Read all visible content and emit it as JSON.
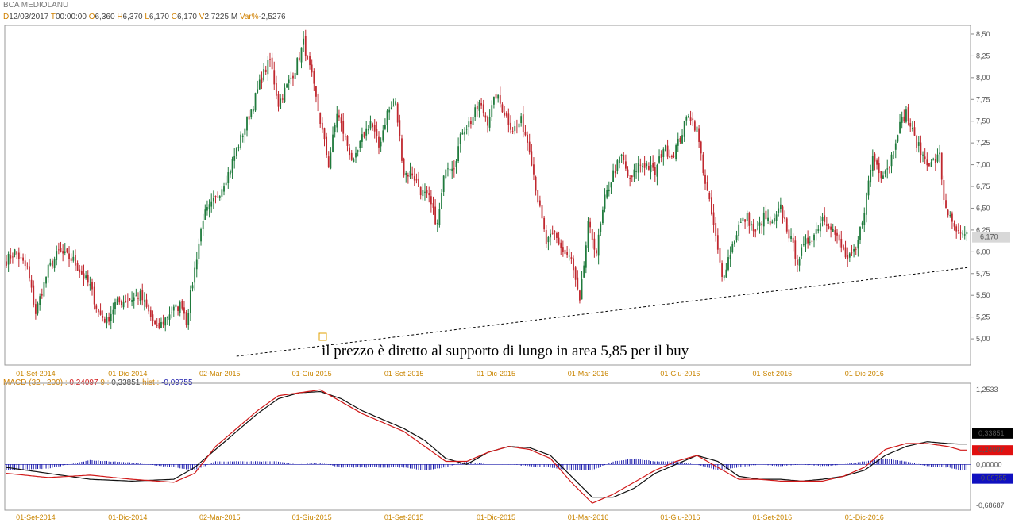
{
  "header": {
    "title": "BCA MEDIOLANU",
    "fields": [
      {
        "key": "D",
        "value": "12/03/2017"
      },
      {
        "key": "T",
        "value": "00:00:00"
      },
      {
        "key": "O",
        "value": "6,360"
      },
      {
        "key": "H",
        "value": "6,370"
      },
      {
        "key": "L",
        "value": "6,170"
      },
      {
        "key": "C",
        "value": "6,170"
      },
      {
        "key": "V",
        "value": "2,7225 M"
      },
      {
        "key": "Var%",
        "value": "-2,5276"
      }
    ]
  },
  "macd_header": {
    "name": "MACD",
    "params": "(32 , 200) :",
    "macd_value": "0,24097",
    "signal_label": "9 :",
    "signal_value": "0,33851",
    "hist_label": "hist :",
    "hist_value": "-0,09755"
  },
  "colors": {
    "up": "#1f7a3c",
    "down": "#c0282f",
    "macd_line": "#d01818",
    "signal_line": "#111111",
    "hist": "#1a1aaa",
    "date": "#c98500"
  },
  "annotation": "il prezzo è diretto al supporto di lungo in area 5,85 per il buy",
  "chart_data": [
    {
      "type": "candlestick",
      "title": "BCA MEDIOLANU",
      "ylim": [
        4.7,
        8.6
      ],
      "y_ticks": [
        "8,50",
        "8,25",
        "8,00",
        "7,75",
        "7,50",
        "7,25",
        "7,00",
        "6,75",
        "6,50",
        "6,25",
        "6,00",
        "5,75",
        "5,50",
        "5,25",
        "5,00"
      ],
      "y_tick_values": [
        8.5,
        8.25,
        8.0,
        7.75,
        7.5,
        7.25,
        7.0,
        6.75,
        6.5,
        6.25,
        6.0,
        5.75,
        5.5,
        5.25,
        5.0
      ],
      "last_price": "6,170",
      "x_labels": [
        "01-Set-2014",
        "01-Dic-2014",
        "02-Mar-2015",
        "01-Giu-2015",
        "01-Set-2015",
        "01-Dic-2015",
        "01-Mar-2016",
        "01-Giu-2016",
        "01-Set-2016",
        "01-Dic-2016"
      ],
      "x_label_index": [
        14,
        58,
        102,
        146,
        190,
        234,
        278,
        322,
        366,
        410
      ],
      "n_bars": 460,
      "close_anchors": [
        [
          0,
          5.9
        ],
        [
          4,
          6.0
        ],
        [
          10,
          5.8
        ],
        [
          14,
          5.3
        ],
        [
          20,
          5.8
        ],
        [
          25,
          6.0
        ],
        [
          32,
          5.9
        ],
        [
          40,
          5.6
        ],
        [
          44,
          5.3
        ],
        [
          48,
          5.2
        ],
        [
          52,
          5.4
        ],
        [
          58,
          5.45
        ],
        [
          64,
          5.5
        ],
        [
          68,
          5.3
        ],
        [
          72,
          5.1
        ],
        [
          78,
          5.3
        ],
        [
          84,
          5.4
        ],
        [
          86,
          5.2
        ],
        [
          90,
          5.8
        ],
        [
          94,
          6.4
        ],
        [
          100,
          6.6
        ],
        [
          106,
          6.9
        ],
        [
          112,
          7.3
        ],
        [
          118,
          7.7
        ],
        [
          122,
          8.0
        ],
        [
          126,
          8.2
        ],
        [
          130,
          7.7
        ],
        [
          134,
          7.9
        ],
        [
          138,
          8.1
        ],
        [
          142,
          8.4
        ],
        [
          146,
          8.0
        ],
        [
          150,
          7.5
        ],
        [
          154,
          7.0
        ],
        [
          158,
          7.6
        ],
        [
          162,
          7.3
        ],
        [
          166,
          7.0
        ],
        [
          170,
          7.3
        ],
        [
          174,
          7.5
        ],
        [
          178,
          7.2
        ],
        [
          182,
          7.6
        ],
        [
          186,
          7.7
        ],
        [
          190,
          6.9
        ],
        [
          194,
          6.9
        ],
        [
          198,
          6.7
        ],
        [
          202,
          6.6
        ],
        [
          206,
          6.3
        ],
        [
          210,
          7.0
        ],
        [
          214,
          7.0
        ],
        [
          218,
          7.4
        ],
        [
          222,
          7.5
        ],
        [
          226,
          7.7
        ],
        [
          230,
          7.5
        ],
        [
          234,
          7.8
        ],
        [
          238,
          7.6
        ],
        [
          242,
          7.4
        ],
        [
          246,
          7.5
        ],
        [
          250,
          7.2
        ],
        [
          254,
          6.6
        ],
        [
          258,
          6.1
        ],
        [
          262,
          6.2
        ],
        [
          266,
          6.0
        ],
        [
          270,
          5.9
        ],
        [
          274,
          5.4
        ],
        [
          278,
          6.3
        ],
        [
          282,
          6.0
        ],
        [
          286,
          6.6
        ],
        [
          290,
          6.9
        ],
        [
          294,
          7.1
        ],
        [
          298,
          6.8
        ],
        [
          302,
          7.0
        ],
        [
          306,
          7.0
        ],
        [
          310,
          6.9
        ],
        [
          314,
          7.2
        ],
        [
          318,
          7.1
        ],
        [
          322,
          7.3
        ],
        [
          326,
          7.6
        ],
        [
          330,
          7.4
        ],
        [
          334,
          6.8
        ],
        [
          338,
          6.3
        ],
        [
          342,
          5.7
        ],
        [
          346,
          6.0
        ],
        [
          350,
          6.3
        ],
        [
          354,
          6.4
        ],
        [
          358,
          6.2
        ],
        [
          362,
          6.4
        ],
        [
          366,
          6.3
        ],
        [
          370,
          6.5
        ],
        [
          374,
          6.2
        ],
        [
          378,
          5.9
        ],
        [
          382,
          6.1
        ],
        [
          386,
          6.2
        ],
        [
          390,
          6.4
        ],
        [
          394,
          6.3
        ],
        [
          398,
          6.1
        ],
        [
          402,
          5.9
        ],
        [
          406,
          6.0
        ],
        [
          410,
          6.5
        ],
        [
          414,
          7.1
        ],
        [
          418,
          6.9
        ],
        [
          422,
          7.0
        ],
        [
          426,
          7.4
        ],
        [
          430,
          7.6
        ],
        [
          434,
          7.3
        ],
        [
          438,
          7.1
        ],
        [
          442,
          7.0
        ],
        [
          446,
          7.1
        ],
        [
          448,
          6.6
        ],
        [
          452,
          6.3
        ],
        [
          456,
          6.17
        ]
      ],
      "trendline": [
        [
          110,
          4.8
        ],
        [
          460,
          5.82
        ]
      ]
    },
    {
      "type": "line",
      "title": "MACD (32 , 200)",
      "ylim": [
        -0.68687,
        1.2533
      ],
      "y_ticks": [
        "1,2533",
        "-0,68687"
      ],
      "zero_label": "0,00000",
      "last_values": {
        "signal": "0,33851",
        "macd": "0,24097",
        "hist": "-0,09755"
      },
      "series": [
        {
          "name": "MACD",
          "anchors": [
            [
              0,
              -0.15
            ],
            [
              20,
              -0.22
            ],
            [
              40,
              -0.18
            ],
            [
              60,
              -0.25
            ],
            [
              80,
              -0.3
            ],
            [
              90,
              -0.15
            ],
            [
              100,
              0.3
            ],
            [
              110,
              0.6
            ],
            [
              120,
              0.9
            ],
            [
              130,
              1.15
            ],
            [
              140,
              1.2
            ],
            [
              150,
              1.25
            ],
            [
              160,
              1.05
            ],
            [
              170,
              0.85
            ],
            [
              180,
              0.7
            ],
            [
              190,
              0.55
            ],
            [
              200,
              0.3
            ],
            [
              210,
              0.05
            ],
            [
              220,
              0.05
            ],
            [
              230,
              0.2
            ],
            [
              240,
              0.3
            ],
            [
              250,
              0.25
            ],
            [
              260,
              0.1
            ],
            [
              270,
              -0.3
            ],
            [
              280,
              -0.65
            ],
            [
              290,
              -0.5
            ],
            [
              300,
              -0.3
            ],
            [
              310,
              -0.1
            ],
            [
              320,
              0.05
            ],
            [
              330,
              0.15
            ],
            [
              340,
              -0.05
            ],
            [
              350,
              -0.25
            ],
            [
              360,
              -0.25
            ],
            [
              370,
              -0.28
            ],
            [
              380,
              -0.28
            ],
            [
              390,
              -0.28
            ],
            [
              400,
              -0.2
            ],
            [
              410,
              -0.05
            ],
            [
              420,
              0.25
            ],
            [
              430,
              0.35
            ],
            [
              440,
              0.35
            ],
            [
              450,
              0.3
            ],
            [
              456,
              0.24
            ]
          ]
        },
        {
          "name": "Signal",
          "anchors": [
            [
              0,
              -0.05
            ],
            [
              20,
              -0.15
            ],
            [
              40,
              -0.25
            ],
            [
              60,
              -0.28
            ],
            [
              80,
              -0.25
            ],
            [
              90,
              -0.05
            ],
            [
              100,
              0.25
            ],
            [
              110,
              0.55
            ],
            [
              120,
              0.85
            ],
            [
              130,
              1.1
            ],
            [
              140,
              1.2
            ],
            [
              150,
              1.22
            ],
            [
              160,
              1.1
            ],
            [
              170,
              0.9
            ],
            [
              180,
              0.75
            ],
            [
              190,
              0.6
            ],
            [
              200,
              0.4
            ],
            [
              210,
              0.1
            ],
            [
              220,
              0.0
            ],
            [
              230,
              0.2
            ],
            [
              240,
              0.3
            ],
            [
              250,
              0.28
            ],
            [
              260,
              0.15
            ],
            [
              270,
              -0.2
            ],
            [
              280,
              -0.55
            ],
            [
              290,
              -0.55
            ],
            [
              300,
              -0.4
            ],
            [
              310,
              -0.15
            ],
            [
              320,
              0.0
            ],
            [
              330,
              0.15
            ],
            [
              340,
              0.05
            ],
            [
              350,
              -0.2
            ],
            [
              360,
              -0.25
            ],
            [
              370,
              -0.25
            ],
            [
              380,
              -0.28
            ],
            [
              390,
              -0.25
            ],
            [
              400,
              -0.2
            ],
            [
              410,
              -0.1
            ],
            [
              420,
              0.15
            ],
            [
              430,
              0.3
            ],
            [
              440,
              0.38
            ],
            [
              450,
              0.35
            ],
            [
              456,
              0.34
            ]
          ]
        }
      ],
      "histogram_name": "hist"
    }
  ]
}
